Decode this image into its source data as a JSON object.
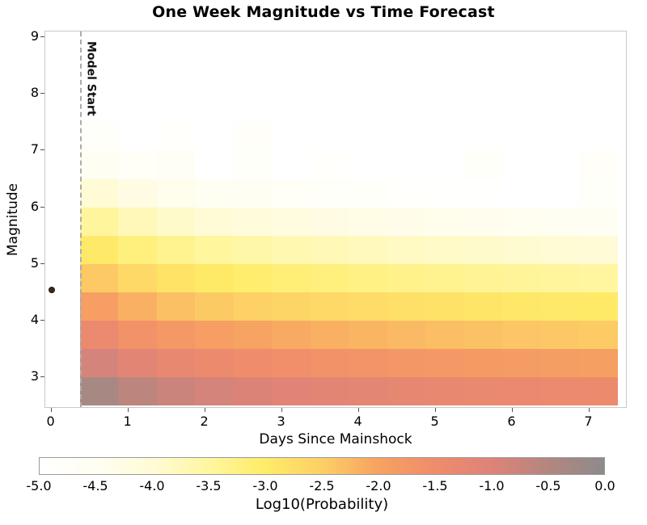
{
  "chart_data": {
    "type": "heatmap",
    "title": "One Week Magnitude vs Time Forecast",
    "xlabel": "Days Since Mainshock",
    "ylabel": "Magnitude",
    "colorbar_label": "Log10(Probability)",
    "x_ticks": [
      0,
      1,
      2,
      3,
      4,
      5,
      6,
      7
    ],
    "y_ticks": [
      3,
      4,
      5,
      6,
      7,
      8,
      9
    ],
    "xlim": [
      -0.08,
      7.5
    ],
    "ylim": [
      2.45,
      9.1
    ],
    "colorbar_range": [
      -5,
      0
    ],
    "colorbar_ticks": [
      "-5.0",
      "-4.5",
      "-4.0",
      "-3.5",
      "-3.0",
      "-2.5",
      "-2.0",
      "-1.5",
      "-1.0",
      "-0.5",
      "0.0"
    ],
    "colormap_stops": [
      {
        "v": -5.0,
        "c": "#ffffff"
      },
      {
        "v": -4.5,
        "c": "#fffef2"
      },
      {
        "v": -4.0,
        "c": "#fffbd6"
      },
      {
        "v": -3.5,
        "c": "#fff6a0"
      },
      {
        "v": -3.0,
        "c": "#ffec68"
      },
      {
        "v": -2.5,
        "c": "#fdcf66"
      },
      {
        "v": -2.0,
        "c": "#f7a261"
      },
      {
        "v": -1.5,
        "c": "#ef8c6b"
      },
      {
        "v": -1.0,
        "c": "#df8378"
      },
      {
        "v": -0.5,
        "c": "#b3867f"
      },
      {
        "v": 0.0,
        "c": "#8d8b8b"
      }
    ],
    "model_start": {
      "day": 0.37,
      "label": "Model Start"
    },
    "mainshock": {
      "day": 0,
      "magnitude": 4.55
    },
    "grid": {
      "x_start": 0.37,
      "x_step": 0.5,
      "y_start": 2.5,
      "y_step": 0.5,
      "mag_bin_centers": [
        2.75,
        3.25,
        3.75,
        4.25,
        4.75,
        5.25,
        5.75,
        6.25,
        6.75,
        7.25
      ],
      "values_log10_probability": [
        [
          -0.35,
          -0.6,
          -0.76,
          -0.88,
          -0.97,
          -1.05,
          -1.11,
          -1.17,
          -1.22,
          -1.27,
          -1.31,
          -1.35,
          -1.38,
          -1.41
        ],
        [
          -0.87,
          -1.12,
          -1.28,
          -1.4,
          -1.49,
          -1.57,
          -1.63,
          -1.69,
          -1.74,
          -1.79,
          -1.83,
          -1.87,
          -1.9,
          -1.93
        ],
        [
          -1.39,
          -1.64,
          -1.8,
          -1.92,
          -2.01,
          -2.09,
          -2.15,
          -2.21,
          -2.26,
          -2.31,
          -2.35,
          -2.39,
          -2.42,
          -2.45
        ],
        [
          -1.91,
          -2.16,
          -2.32,
          -2.44,
          -2.53,
          -2.61,
          -2.67,
          -2.73,
          -2.78,
          -2.83,
          -2.87,
          -2.91,
          -2.94,
          -2.97
        ],
        [
          -2.43,
          -2.68,
          -2.84,
          -2.96,
          -3.05,
          -3.13,
          -3.19,
          -3.25,
          -3.3,
          -3.35,
          -3.39,
          -3.43,
          -3.46,
          -3.49
        ],
        [
          -2.95,
          -3.2,
          -3.36,
          -3.48,
          -3.57,
          -3.65,
          -3.71,
          -3.77,
          -3.82,
          -3.87,
          -3.91,
          -3.95,
          -3.98,
          -4.01
        ],
        [
          -3.47,
          -3.72,
          -3.88,
          -4.0,
          -4.09,
          -4.17,
          -4.23,
          -4.29,
          -4.34,
          -4.39,
          -4.43,
          -4.47,
          -4.5,
          -4.53
        ],
        [
          -3.99,
          -4.24,
          -4.4,
          -4.52,
          -4.61,
          -4.69,
          -4.75,
          -4.81,
          -4.86,
          -4.91,
          -4.95,
          -4.99,
          -5.0,
          -4.8
        ],
        [
          -4.5,
          -4.7,
          -4.62,
          null,
          -4.82,
          null,
          -4.85,
          null,
          null,
          null,
          -4.75,
          null,
          null,
          -4.72
        ],
        [
          -4.78,
          null,
          -4.85,
          null,
          -4.72,
          null,
          null,
          null,
          null,
          null,
          null,
          null,
          null,
          null
        ]
      ]
    }
  }
}
